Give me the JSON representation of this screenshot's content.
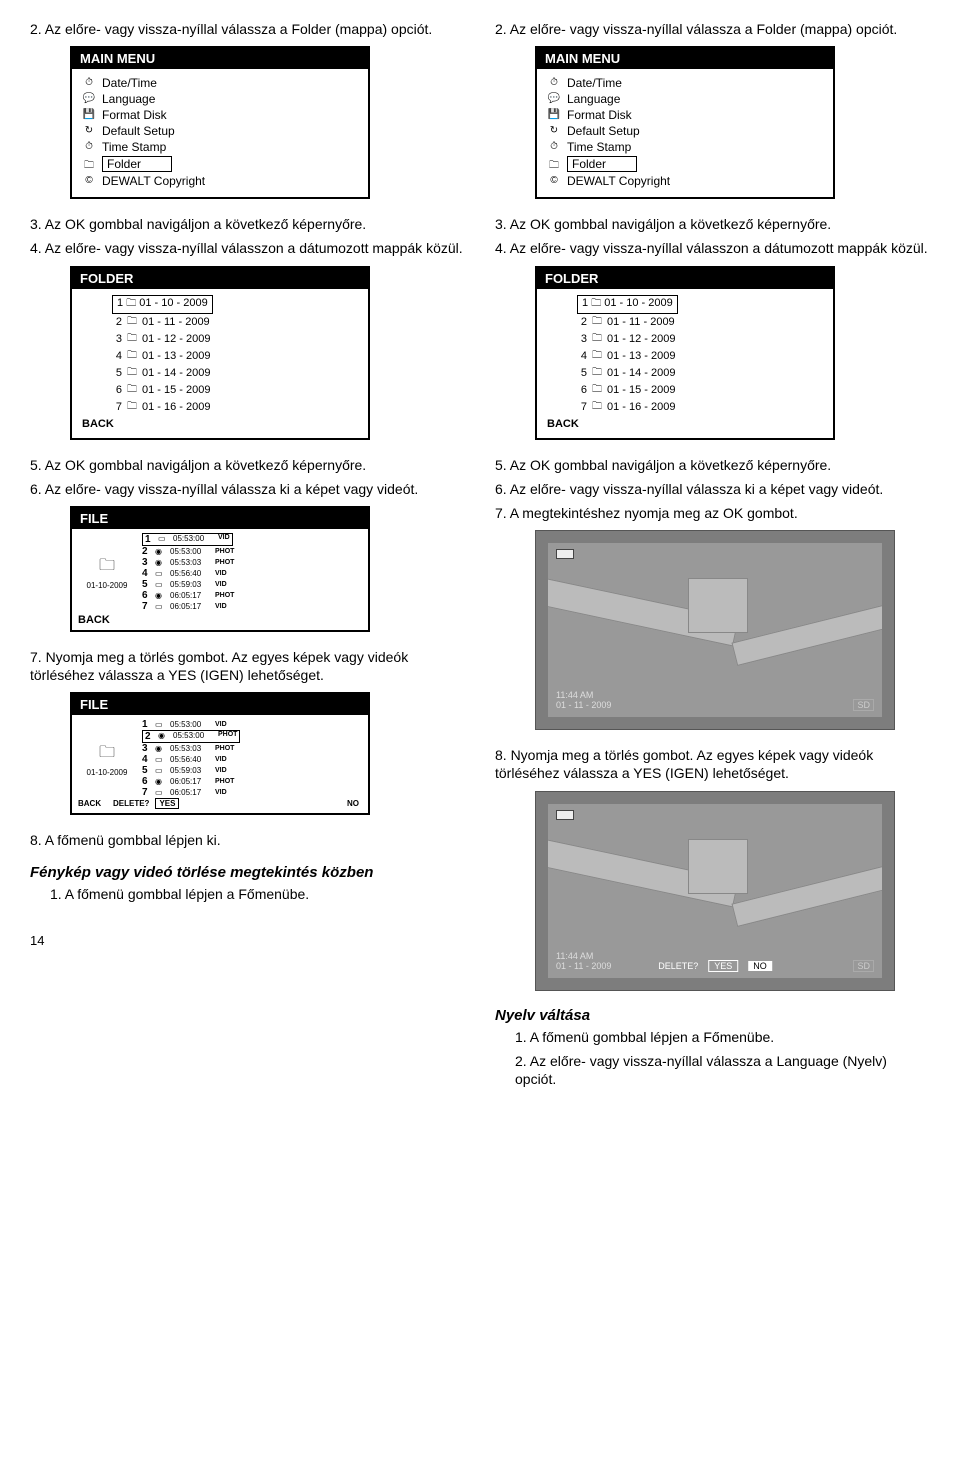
{
  "left": {
    "step2": "2. Az előre- vagy vissza-nyíllal válassza a Folder (mappa) opciót.",
    "step3": "3. Az OK gombbal navigáljon a következő képernyőre.",
    "step4": "4. Az előre- vagy vissza-nyíllal válasszon a dátumozott mappák közül.",
    "step5": "5. Az OK gombbal navigáljon a következő képernyőre.",
    "step6": "6. Az előre- vagy vissza-nyíllal válassza ki a képet vagy videót.",
    "step7": "7. Nyomja meg a törlés gombot. Az egyes képek vagy videók törléséhez válassza a YES (IGEN) lehetőséget.",
    "step8": "8. A főmenü gombbal lépjen ki.",
    "heading_delete": "Fénykép vagy videó törlése megtekintés közben",
    "step_del_1": "1. A főmenü gombbal lépjen a Főmenübe."
  },
  "right": {
    "step2": "2. Az előre- vagy vissza-nyíllal válassza a Folder (mappa) opciót.",
    "step3": "3. Az OK gombbal navigáljon a következő képernyőre.",
    "step4": "4. Az előre- vagy vissza-nyíllal válasszon a dátumozott mappák közül.",
    "step5": "5. Az OK gombbal navigáljon a következő képernyőre.",
    "step6": "6. Az előre- vagy vissza-nyíllal válassza ki a képet vagy videót.",
    "step7": "7. A megtekintéshez nyomja meg az OK gombot.",
    "step8": "8. Nyomja meg a törlés gombot. Az egyes képek vagy videók törléséhez válassza a YES (IGEN) lehetőséget.",
    "heading_lang": "Nyelv váltása",
    "step_lang_1": "1. A főmenü gombbal lépjen a Főmenübe.",
    "step_lang_2": "2. Az előre- vagy vissza-nyíllal válassza a Language (Nyelv) opciót."
  },
  "mainmenu": {
    "title": "MAIN MENU",
    "items": [
      "Date/Time",
      "Language",
      "Format Disk",
      "Default Setup",
      "Time Stamp",
      "Folder",
      "DEWALT Copyright"
    ],
    "selected": "Folder",
    "icons": [
      "⏱",
      "💬",
      "💾",
      "↻",
      "⏱",
      "🗀",
      "©"
    ]
  },
  "folder": {
    "title": "FOLDER",
    "back": "BACK",
    "rows": [
      {
        "n": "1",
        "label": "01 - 10 - 2009",
        "sel": true
      },
      {
        "n": "2",
        "label": "01 - 11 - 2009"
      },
      {
        "n": "3",
        "label": "01 - 12 - 2009"
      },
      {
        "n": "4",
        "label": "01 - 13 - 2009"
      },
      {
        "n": "5",
        "label": "01 - 14 - 2009"
      },
      {
        "n": "6",
        "label": "01 - 15 - 2009"
      },
      {
        "n": "7",
        "label": "01 - 16 - 2009"
      }
    ]
  },
  "file": {
    "title": "FILE",
    "back": "BACK",
    "left_label": "01-10-2009",
    "rows": [
      {
        "n": "1",
        "t": "05:53:00",
        "ty": "VID",
        "sel": true
      },
      {
        "n": "2",
        "t": "05:53:00",
        "ty": "PHOT"
      },
      {
        "n": "3",
        "t": "05:53:03",
        "ty": "PHOT"
      },
      {
        "n": "4",
        "t": "05:56:40",
        "ty": "VID"
      },
      {
        "n": "5",
        "t": "05:59:03",
        "ty": "VID"
      },
      {
        "n": "6",
        "t": "06:05:17",
        "ty": "PHOT"
      },
      {
        "n": "7",
        "t": "06:05:17",
        "ty": "VID"
      }
    ],
    "delete_q": "DELETE?",
    "yes": "YES",
    "no": "NO"
  },
  "preview": {
    "time": "11:44 AM",
    "date": "01 - 11 - 2009",
    "sd": "SD",
    "delete_q": "DELETE?",
    "yes": "YES",
    "no": "NO"
  },
  "page_num": "14"
}
